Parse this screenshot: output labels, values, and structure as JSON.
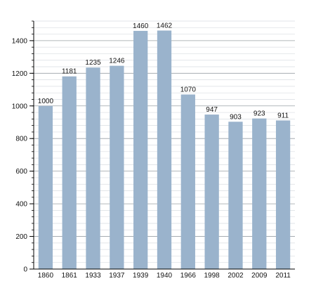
{
  "chart_data": {
    "type": "bar",
    "categories": [
      "1860",
      "1861",
      "1933",
      "1937",
      "1939",
      "1940",
      "1966",
      "1998",
      "2002",
      "2009",
      "2011"
    ],
    "values": [
      1000,
      1181,
      1235,
      1246,
      1460,
      1462,
      1070,
      947,
      903,
      923,
      911
    ],
    "data_labels": [
      "1000",
      "1181",
      "1235",
      "1246",
      "1460",
      "1462",
      "1070",
      "947",
      "903",
      "923",
      "911"
    ],
    "y_ticks": [
      0,
      200,
      400,
      600,
      800,
      1000,
      1200,
      1400
    ],
    "y_tick_labels": [
      "0",
      "200",
      "400",
      "600",
      "800",
      "1000",
      "1200",
      "1400"
    ],
    "ylim": [
      0,
      1520
    ],
    "grid": true,
    "bar_color": "#9ab3cc",
    "grid_color": "#d9dde2",
    "major_grid_color": "#9aa0a6",
    "axis_color": "#000000"
  }
}
